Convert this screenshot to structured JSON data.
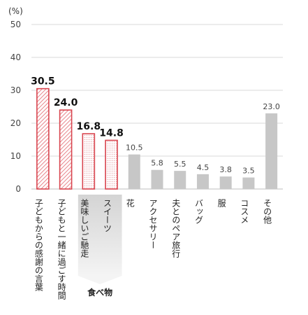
{
  "chart_data": {
    "type": "bar",
    "unit_label": "(%)",
    "ylim": [
      0,
      50
    ],
    "yticks": [
      0,
      10,
      20,
      30,
      40,
      50
    ],
    "grid": true,
    "categories": [
      "子どもからの感謝の言葉",
      "子どもと一緒に過ごす時間",
      "美味しいご馳走",
      "スイーツ",
      "花",
      "アクセサリー",
      "夫とのペア旅行",
      "バッグ",
      "服",
      "コスメ",
      "その他"
    ],
    "values": [
      30.5,
      24.0,
      16.8,
      14.8,
      10.5,
      5.8,
      5.5,
      4.5,
      3.8,
      3.5,
      23.0
    ],
    "value_labels": [
      "30.5",
      "24.0",
      "16.8",
      "14.8",
      "10.5",
      "5.8",
      "5.5",
      "4.5",
      "3.8",
      "3.5",
      "23.0"
    ],
    "highlighted": [
      true,
      true,
      true,
      true,
      false,
      false,
      false,
      false,
      false,
      false,
      false
    ],
    "group_label": "食べ物",
    "colors": {
      "highlight_stroke": "#d9454f",
      "highlight_hatch": "#e8858b",
      "gray_bar": "#c7c7c7",
      "grid": "#d9d9d9",
      "group_box": "#d0d0d0"
    }
  }
}
